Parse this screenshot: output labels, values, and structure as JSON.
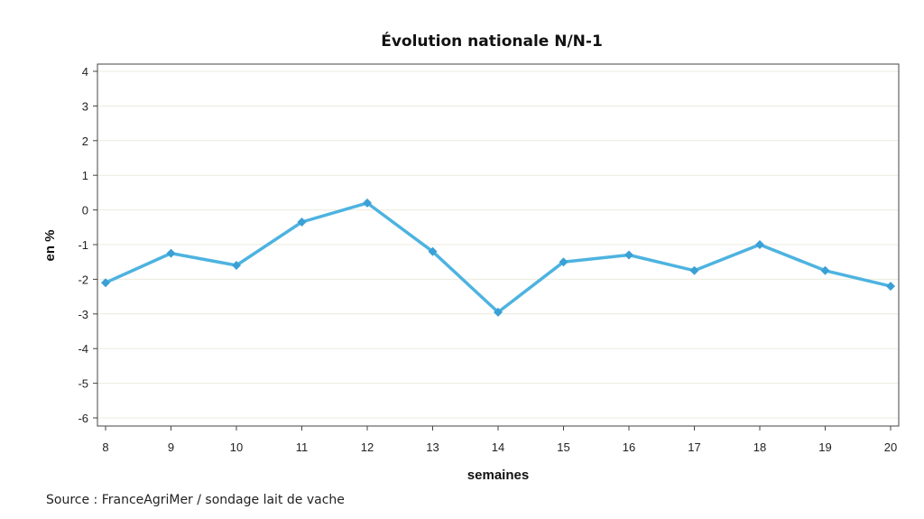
{
  "chart_data": {
    "type": "line",
    "title": "Évolution nationale N/N-1",
    "xlabel": "semaines",
    "ylabel": "en %",
    "x": [
      8,
      9,
      10,
      11,
      12,
      13,
      14,
      15,
      16,
      17,
      18,
      19,
      20
    ],
    "series": [
      {
        "values": [
          -2.1,
          -1.25,
          -1.6,
          -0.35,
          0.2,
          -1.2,
          -2.95,
          -1.5,
          -1.3,
          -1.75,
          -1.0,
          -1.75,
          -2.2
        ]
      }
    ],
    "ylim": [
      -6,
      4
    ],
    "yticks": [
      4,
      3,
      2,
      1,
      0,
      -1,
      -2,
      -3,
      -4,
      -5,
      -6
    ],
    "xlim": [
      8,
      20
    ],
    "grid": true,
    "legend": "none",
    "colors": {
      "line": "#4DB3E0",
      "marker": "#3AA0D5",
      "grid": "#ECEBDD",
      "axis": "#444444"
    }
  },
  "source": "Source : FranceAgriMer / sondage lait de vache"
}
